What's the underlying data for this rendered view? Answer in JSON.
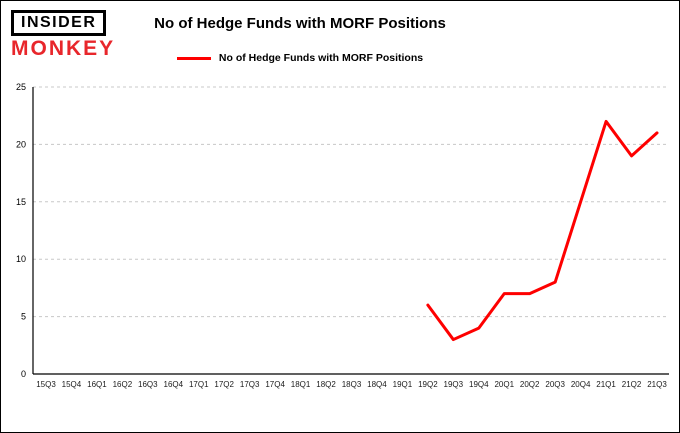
{
  "logo": {
    "line1": "INSIDER",
    "line2": "MONKEY"
  },
  "header": {
    "title": "No of Hedge Funds with MORF Positions",
    "legend_label": "No of Hedge Funds with MORF Positions"
  },
  "colors": {
    "line_red": "#fe0000",
    "logo_red": "#e8262b",
    "grid": "#c8c8c8",
    "axis": "#000000",
    "background": "#ffffff"
  },
  "chart_data": {
    "type": "line",
    "title": "No of Hedge Funds with MORF Positions",
    "legend": [
      "No of Hedge Funds with MORF Positions"
    ],
    "legend_position": "top-center",
    "grid": "horizontal-dashed",
    "categories": [
      "15Q3",
      "15Q4",
      "16Q1",
      "16Q2",
      "16Q3",
      "16Q4",
      "17Q1",
      "17Q2",
      "17Q3",
      "17Q4",
      "18Q1",
      "18Q2",
      "18Q3",
      "18Q4",
      "19Q1",
      "19Q2",
      "19Q3",
      "19Q4",
      "20Q1",
      "20Q2",
      "20Q3",
      "20Q4",
      "21Q1",
      "21Q2",
      "21Q3"
    ],
    "values": [
      null,
      null,
      null,
      null,
      null,
      null,
      null,
      null,
      null,
      null,
      null,
      null,
      null,
      null,
      null,
      6,
      3,
      4,
      7,
      7,
      8,
      15,
      22,
      19,
      21
    ],
    "xlabel": "",
    "ylabel": "",
    "ylim": [
      0,
      25
    ],
    "yticks": [
      0,
      5,
      10,
      15,
      20,
      25
    ],
    "line_color": "#fe0000"
  }
}
